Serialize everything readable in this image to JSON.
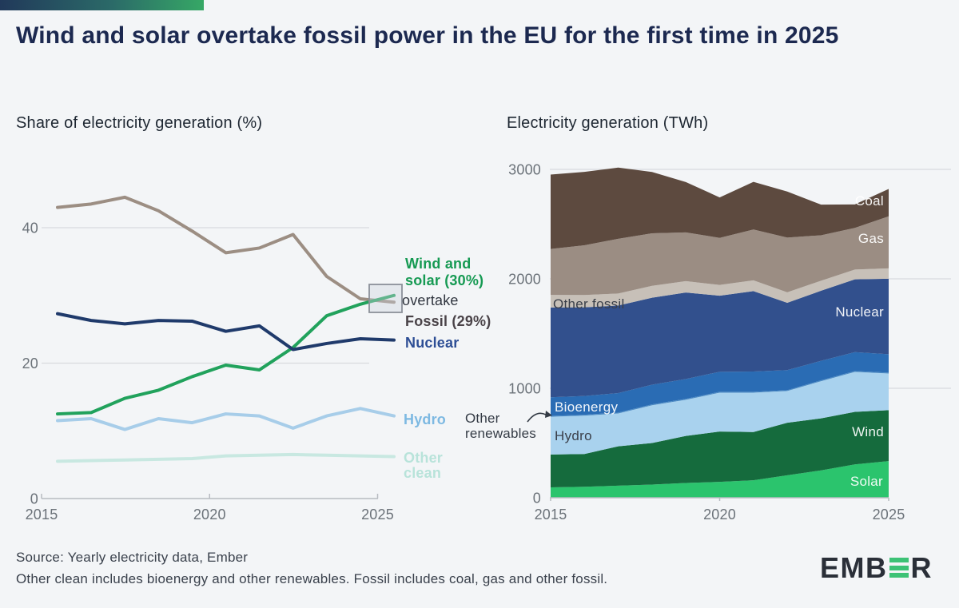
{
  "page": {
    "title": "Wind and solar overtake fossil power in the EU for the first time in 2025",
    "background": "#f3f5f7",
    "accent_gradient": [
      "#21395a",
      "#36a866"
    ]
  },
  "annotations": {
    "wind_solar": "Wind and solar (30%)",
    "overtake": "overtake",
    "fossil": "Fossil (29%)",
    "other_renewables": "Other renewables"
  },
  "footer": {
    "source": "Source: Yearly electricity data, Ember",
    "note": "Other clean includes bioenergy and other renewables. Fossil includes coal, gas and other fossil.",
    "logo_start": "EMB",
    "logo_end": "R"
  },
  "chart_data": [
    {
      "type": "line",
      "title": "Share of electricity generation (%)",
      "x": [
        2015,
        2016,
        2017,
        2018,
        2019,
        2020,
        2021,
        2022,
        2023,
        2024,
        2025
      ],
      "series": [
        {
          "name": "Fossil",
          "color": "#9c8e83",
          "values": [
            43,
            43.5,
            44.5,
            42.5,
            39.5,
            36.3,
            37,
            39,
            32.8,
            29.5,
            29
          ]
        },
        {
          "name": "Wind and solar",
          "color": "#21a25c",
          "values": [
            12.5,
            12.7,
            14.8,
            16,
            18,
            19.7,
            19,
            22.3,
            27,
            28.7,
            30
          ]
        },
        {
          "name": "Nuclear",
          "color": "#1f3a6b",
          "values": [
            27.3,
            26.3,
            25.8,
            26.3,
            26.2,
            24.7,
            25.5,
            22,
            22.9,
            23.6,
            23.4
          ]
        },
        {
          "name": "Hydro",
          "color": "#a7cde9",
          "values": [
            11.5,
            11.8,
            10.2,
            11.8,
            11.2,
            12.5,
            12.2,
            10.4,
            12.2,
            13.3,
            12.2
          ]
        },
        {
          "name": "Other clean",
          "color": "#c8e8e1",
          "values": [
            5.5,
            5.6,
            5.7,
            5.8,
            5.9,
            6.3,
            6.4,
            6.5,
            6.4,
            6.3,
            6.2
          ]
        }
      ],
      "ylim": [
        0,
        50
      ],
      "yticks": [
        0,
        20,
        40
      ],
      "ytick_labels": [
        "0",
        "20",
        "40"
      ],
      "xticks": [
        2015,
        2020,
        2025
      ],
      "xtick_labels": [
        "2015",
        "2020",
        "2025"
      ],
      "grid": "horizontal lines at 20 and 40",
      "legend_position": "right of lines, as direct labels",
      "highlight": "box marking wind+solar crossing above fossil at 2025"
    },
    {
      "type": "area",
      "title": "Electricity generation (TWh)",
      "stack_order": "bottom to top",
      "x": [
        2015,
        2016,
        2017,
        2018,
        2019,
        2020,
        2021,
        2022,
        2023,
        2024,
        2025
      ],
      "series": [
        {
          "name": "Solar",
          "color": "#2bc46d",
          "values": [
            95,
            100,
            110,
            120,
            135,
            145,
            160,
            205,
            250,
            305,
            335
          ]
        },
        {
          "name": "Wind",
          "color": "#156b3d",
          "values": [
            300,
            300,
            360,
            380,
            430,
            460,
            440,
            480,
            475,
            480,
            465
          ]
        },
        {
          "name": "Hydro",
          "color": "#a9d2ee",
          "values": [
            345,
            350,
            300,
            345,
            330,
            355,
            360,
            290,
            340,
            365,
            335
          ]
        },
        {
          "name": "Other renewables",
          "color": "#4a8ac4",
          "values": [
            8,
            8,
            8,
            8,
            8,
            8,
            8,
            8,
            8,
            8,
            8
          ]
        },
        {
          "name": "Bioenergy",
          "color": "#2a6cb4",
          "values": [
            170,
            172,
            178,
            180,
            182,
            183,
            185,
            183,
            178,
            172,
            168
          ]
        },
        {
          "name": "Nuclear",
          "color": "#32508d",
          "values": [
            820,
            810,
            800,
            795,
            790,
            695,
            735,
            615,
            640,
            665,
            690
          ]
        },
        {
          "name": "Other fossil",
          "color": "#c7c0b8",
          "values": [
            115,
            112,
            110,
            108,
            104,
            98,
            98,
            96,
            92,
            90,
            95
          ]
        },
        {
          "name": "Gas",
          "color": "#9b8d83",
          "values": [
            420,
            455,
            500,
            480,
            445,
            430,
            465,
            500,
            415,
            380,
            475
          ]
        },
        {
          "name": "Coal",
          "color": "#5d4a3f",
          "values": [
            680,
            670,
            650,
            560,
            460,
            370,
            435,
            420,
            280,
            215,
            250
          ]
        }
      ],
      "ylim": [
        0,
        3000
      ],
      "yticks": [
        0,
        1000,
        2000,
        3000
      ],
      "ytick_labels": [
        "0",
        "1000",
        "2000",
        "3000"
      ],
      "xticks": [
        2015,
        2020,
        2025
      ],
      "xtick_labels": [
        "2015",
        "2020",
        "2025"
      ],
      "grid": "horizontal line at 3000 visible above stack",
      "legend_position": "direct labels inside areas"
    }
  ]
}
